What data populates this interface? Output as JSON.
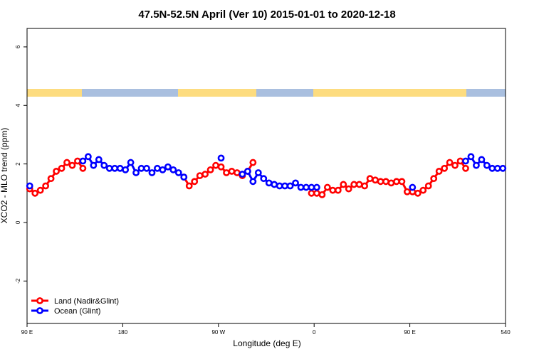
{
  "chart_data": {
    "type": "line",
    "title": "47.5N-52.5N April (Ver 10)   2015-01-01 to 2020-12-18",
    "x_label": "Longitude (deg E)",
    "y_label": "XCO2 - MLO trend (ppm)",
    "xlim": [
      90,
      540
    ],
    "xticks": [
      {
        "value": 90,
        "label": "90 E"
      },
      180,
      {
        "value": 270,
        "label": "90 W"
      },
      {
        "value": 360,
        "label": "0"
      },
      {
        "value": 450,
        "label": "90 E"
      },
      540
    ],
    "ylim": [
      -3.45,
      6.63
    ],
    "yticks": [
      -2,
      0,
      2,
      4,
      6
    ],
    "legend": "bottom-left",
    "x": [
      92.5,
      97.5,
      102.5,
      107.5,
      112.5,
      117.5,
      122.5,
      127.5,
      132.5,
      137.5,
      142.5,
      147.5,
      152.5,
      157.5,
      162.5,
      167.5,
      172.5,
      177.5,
      182.5,
      187.5,
      192.5,
      197.5,
      202.5,
      207.5,
      212.5,
      217.5,
      222.5,
      227.5,
      232.5,
      237.5,
      242.5,
      247.5,
      252.5,
      257.5,
      262.5,
      267.5,
      272.5,
      277.5,
      282.5,
      287.5,
      292.5,
      297.5,
      302.5,
      307.5,
      312.5,
      317.5,
      322.5,
      327.5,
      332.5,
      337.5,
      342.5,
      347.5,
      352.5,
      357.5,
      362.5,
      367.5,
      372.5,
      377.5,
      382.5,
      387.5,
      392.5,
      397.5,
      402.5,
      407.5,
      412.5,
      417.5,
      422.5,
      427.5,
      432.5,
      437.5,
      442.5,
      447.5,
      452.5,
      457.5,
      462.5,
      467.5,
      472.5,
      477.5,
      482.5,
      487.5,
      492.5,
      497.5,
      502.5,
      507.5,
      512.5,
      517.5,
      522.5,
      527.5,
      532.5,
      537.5
    ],
    "series": [
      {
        "name": "Land (Nadir&Glint)",
        "color": "#ff0000",
        "values": [
          1.15,
          1.0,
          1.1,
          1.25,
          1.5,
          1.75,
          1.85,
          2.05,
          1.95,
          2.1,
          1.85,
          null,
          null,
          null,
          null,
          null,
          null,
          null,
          null,
          null,
          null,
          null,
          null,
          null,
          null,
          null,
          null,
          null,
          null,
          1.55,
          1.25,
          1.4,
          1.6,
          1.65,
          1.8,
          1.95,
          1.9,
          1.7,
          1.75,
          1.7,
          1.6,
          1.75,
          2.05,
          null,
          null,
          null,
          null,
          null,
          null,
          null,
          null,
          null,
          null,
          1.0,
          1.0,
          0.95,
          1.2,
          1.1,
          1.1,
          1.3,
          1.15,
          1.3,
          1.3,
          1.25,
          1.5,
          1.45,
          1.4,
          1.4,
          1.35,
          1.4,
          1.4,
          1.05,
          1.05,
          1.0,
          1.1,
          1.25,
          1.5,
          1.75,
          1.85,
          2.05,
          1.95,
          2.1,
          1.85,
          null,
          null,
          null,
          null,
          null,
          null,
          null
        ]
      },
      {
        "name": "Ocean (Glint)",
        "color": "#0000ff",
        "values": [
          1.25,
          null,
          null,
          null,
          null,
          null,
          null,
          null,
          null,
          null,
          2.1,
          2.25,
          1.95,
          2.15,
          1.95,
          1.85,
          1.85,
          1.85,
          1.8,
          2.05,
          1.7,
          1.85,
          1.85,
          1.7,
          1.85,
          1.8,
          1.9,
          1.8,
          1.7,
          1.55,
          null,
          null,
          null,
          null,
          null,
          null,
          2.2,
          null,
          null,
          null,
          1.65,
          1.75,
          1.4,
          1.7,
          1.5,
          1.35,
          1.3,
          1.25,
          1.25,
          1.25,
          1.35,
          1.2,
          1.2,
          1.2,
          1.2,
          null,
          null,
          null,
          null,
          null,
          null,
          null,
          null,
          null,
          null,
          null,
          null,
          null,
          null,
          null,
          null,
          null,
          1.2,
          null,
          null,
          null,
          null,
          null,
          null,
          null,
          null,
          null,
          2.1,
          2.25,
          1.95,
          2.15,
          1.95,
          1.85,
          1.85,
          1.85
        ]
      }
    ]
  }
}
